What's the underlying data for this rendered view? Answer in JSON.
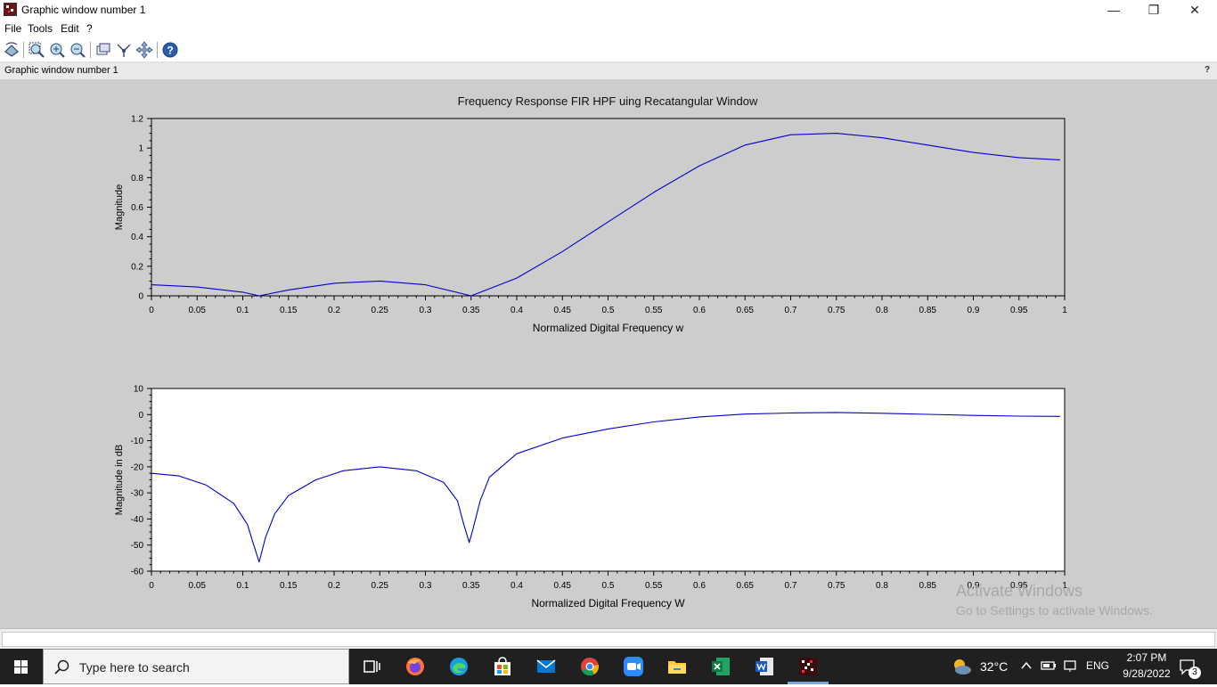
{
  "window": {
    "title": "Graphic window number 1",
    "controls": {
      "minimize": "—",
      "restore": "❐",
      "close": "✕"
    }
  },
  "menu": {
    "items": [
      "File",
      "Tools",
      "Edit",
      "?"
    ]
  },
  "toolbar": {
    "icons": [
      "rotate-icon",
      "zoom-area-icon",
      "zoom-in-icon",
      "zoom-out-icon",
      "select-figure-icon",
      "datatip-icon",
      "pan-icon",
      "help-icon"
    ]
  },
  "infobar": {
    "text": "Graphic window number 1",
    "help": "?"
  },
  "figure": {
    "title": "Frequency Response FIR HPF uing Recatangular Window",
    "background": "#cdcdcd",
    "line_color": "#0000cc"
  },
  "chart_data": [
    {
      "type": "line",
      "title": "Frequency Response FIR HPF uing Recatangular Window",
      "xlabel": "Normalized Digital Frequency w",
      "ylabel": "Magnitude",
      "xlim": [
        0,
        1
      ],
      "ylim": [
        0,
        1.2
      ],
      "x_ticks": [
        "0",
        "0.05",
        "0.1",
        "0.15",
        "0.2",
        "0.25",
        "0.3",
        "0.35",
        "0.4",
        "0.45",
        "0.5",
        "0.55",
        "0.6",
        "0.65",
        "0.7",
        "0.75",
        "0.8",
        "0.85",
        "0.9",
        "0.95",
        "1"
      ],
      "y_ticks": [
        "0",
        "0.2",
        "0.4",
        "0.6",
        "0.8",
        "1",
        "1.2"
      ],
      "plot_background": "#cdcdcd",
      "series": [
        {
          "x": [
            0,
            0.05,
            0.1,
            0.118,
            0.15,
            0.2,
            0.25,
            0.3,
            0.35,
            0.4,
            0.45,
            0.5,
            0.55,
            0.6,
            0.65,
            0.7,
            0.75,
            0.8,
            0.85,
            0.9,
            0.95,
            0.995
          ],
          "values": [
            0.075,
            0.06,
            0.025,
            0,
            0.04,
            0.085,
            0.1,
            0.075,
            0,
            0.12,
            0.3,
            0.5,
            0.7,
            0.88,
            1.02,
            1.09,
            1.1,
            1.07,
            1.02,
            0.97,
            0.935,
            0.92
          ]
        }
      ]
    },
    {
      "type": "line",
      "xlabel": "Normalized Digital Frequency W",
      "ylabel": "Magnitude in dB",
      "xlim": [
        0,
        1
      ],
      "ylim": [
        -60,
        10
      ],
      "x_ticks": [
        "0",
        "0.05",
        "0.1",
        "0.15",
        "0.2",
        "0.25",
        "0.3",
        "0.35",
        "0.4",
        "0.45",
        "0.5",
        "0.55",
        "0.6",
        "0.65",
        "0.7",
        "0.75",
        "0.8",
        "0.85",
        "0.9",
        "0.95",
        "1"
      ],
      "y_ticks": [
        "10",
        "0",
        "-10",
        "-20",
        "-30",
        "-40",
        "-50",
        "-60"
      ],
      "plot_background": "#ffffff",
      "series": [
        {
          "x": [
            0,
            0.03,
            0.06,
            0.09,
            0.105,
            0.112,
            0.118,
            0.125,
            0.135,
            0.15,
            0.18,
            0.21,
            0.25,
            0.29,
            0.32,
            0.335,
            0.342,
            0.348,
            0.352,
            0.36,
            0.37,
            0.4,
            0.45,
            0.5,
            0.55,
            0.6,
            0.65,
            0.7,
            0.75,
            0.8,
            0.85,
            0.9,
            0.95,
            0.995
          ],
          "values": [
            -22.5,
            -23.5,
            -27,
            -34,
            -42,
            -50,
            -56.5,
            -47,
            -38,
            -31,
            -25,
            -21.5,
            -20,
            -21.5,
            -26,
            -33,
            -42,
            -49,
            -44,
            -33,
            -24,
            -15,
            -9,
            -5.5,
            -2.8,
            -0.9,
            0.2,
            0.6,
            0.8,
            0.5,
            0.1,
            -0.3,
            -0.6,
            -0.7
          ]
        }
      ]
    }
  ],
  "activation": {
    "line1": "Activate Windows",
    "line2": "Go to Settings to activate Windows."
  },
  "taskbar": {
    "search_placeholder": "Type here to search",
    "apps": [
      "task-view-icon",
      "firefox-icon",
      "edge-icon",
      "store-icon",
      "mail-icon",
      "chrome-icon",
      "zoom-icon",
      "file-explorer-icon",
      "excel-icon",
      "word-icon",
      "scilab-icon"
    ],
    "weather": "32°C",
    "language": "ENG",
    "time": "2:07 PM",
    "date": "9/28/2022",
    "notifications": "3"
  }
}
